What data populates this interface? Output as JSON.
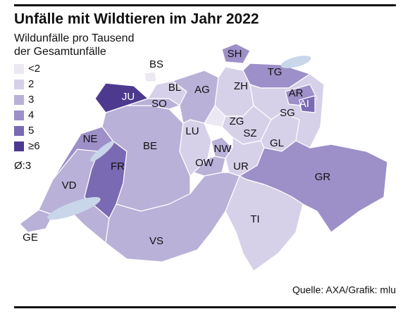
{
  "title": "Unfälle mit Wildtieren im Jahr 2022",
  "subtitle": [
    "Wildunfälle pro Tausend",
    "der Gesamtunfälle"
  ],
  "legend": [
    {
      "label": "<2",
      "color": "#ebe8f3"
    },
    {
      "label": "2",
      "color": "#d6d1e8"
    },
    {
      "label": "3",
      "color": "#b9b1d8"
    },
    {
      "label": "4",
      "color": "#9d8fc8"
    },
    {
      "label": "5",
      "color": "#7a69b3"
    },
    {
      "label": "≥6",
      "color": "#4d3a8f"
    }
  ],
  "average": "Ø:3",
  "source": "Quelle: AXA/Grafik: mlu",
  "cantons": [
    {
      "name": "GE",
      "color": "#b9b1d8"
    },
    {
      "name": "VD",
      "color": "#b9b1d8"
    },
    {
      "name": "NE",
      "color": "#9d8fc8"
    },
    {
      "name": "JU",
      "color": "#4d3a8f"
    },
    {
      "name": "FR",
      "color": "#7a69b3"
    },
    {
      "name": "BE",
      "color": "#b9b1d8"
    },
    {
      "name": "SO",
      "color": "#b9b1d8"
    },
    {
      "name": "BS",
      "color": "#ebe8f3"
    },
    {
      "name": "BL",
      "color": "#d6d1e8"
    },
    {
      "name": "AG",
      "color": "#b9b1d8"
    },
    {
      "name": "ZH",
      "color": "#d6d1e8"
    },
    {
      "name": "SH",
      "color": "#9d8fc8"
    },
    {
      "name": "TG",
      "color": "#9d8fc8"
    },
    {
      "name": "SG",
      "color": "#d6d1e8"
    },
    {
      "name": "AR",
      "color": "#9d8fc8"
    },
    {
      "name": "AI",
      "color": "#7a69b3"
    },
    {
      "name": "LU",
      "color": "#d6d1e8"
    },
    {
      "name": "ZG",
      "color": "#ebe8f3"
    },
    {
      "name": "SZ",
      "color": "#d6d1e8"
    },
    {
      "name": "GL",
      "color": "#d6d1e8"
    },
    {
      "name": "NW",
      "color": "#b9b1d8"
    },
    {
      "name": "OW",
      "color": "#b9b1d8"
    },
    {
      "name": "UR",
      "color": "#d6d1e8"
    },
    {
      "name": "GR",
      "color": "#9d8fc8"
    },
    {
      "name": "TI",
      "color": "#d6d1e8"
    },
    {
      "name": "VS",
      "color": "#b9b1d8"
    }
  ]
}
